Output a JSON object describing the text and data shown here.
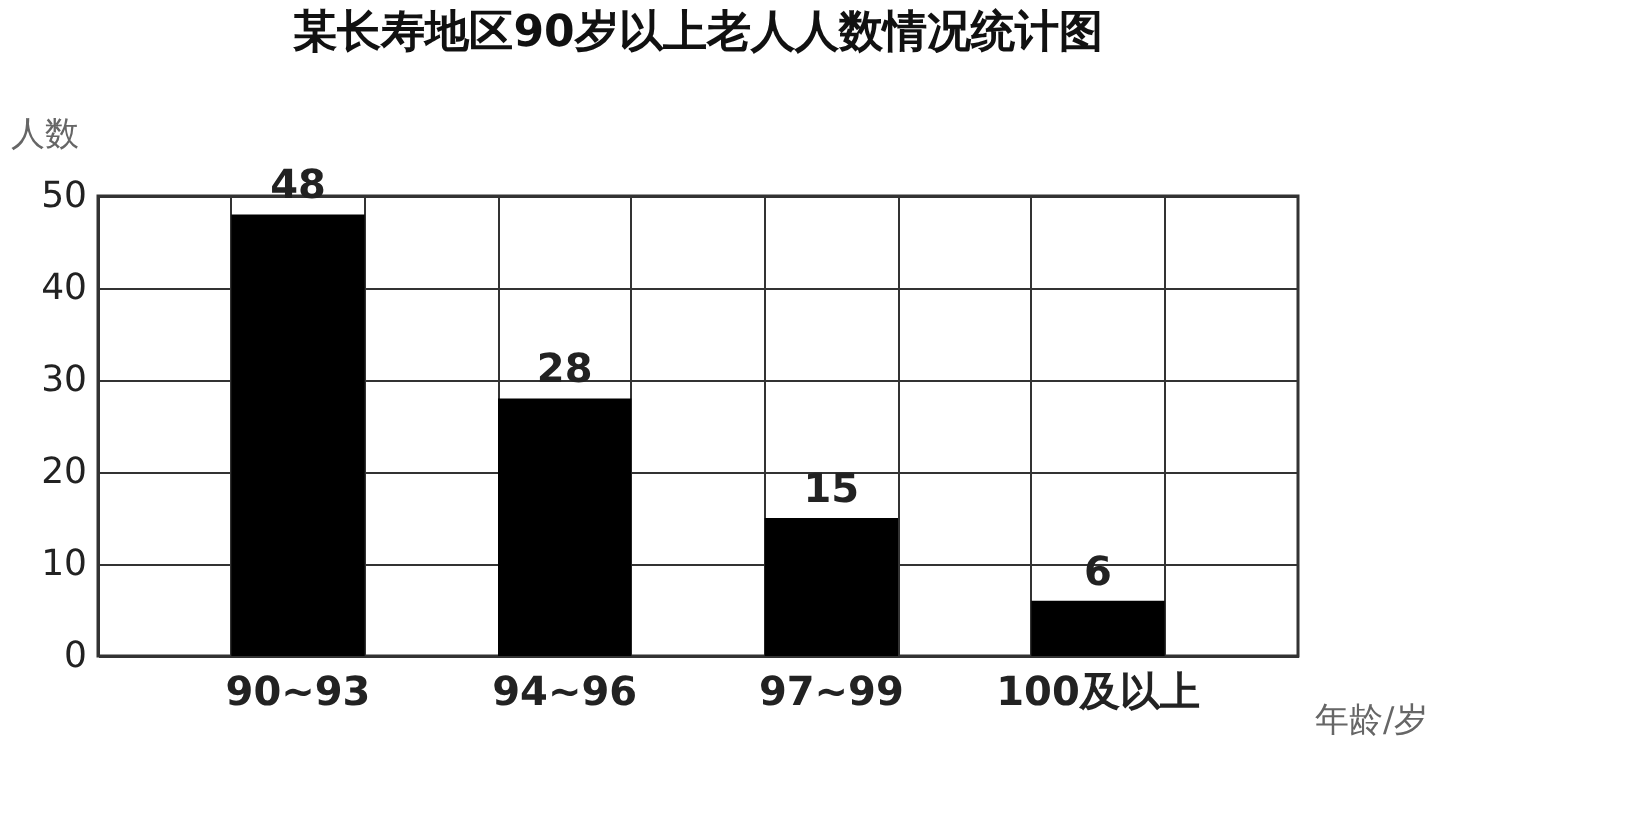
{
  "chart_data": {
    "type": "bar",
    "title": "某长寿地区90岁以上老人人数情况统计图",
    "xlabel": "年龄/岁",
    "ylabel": "人数",
    "categories": [
      "90~93",
      "94~96",
      "97~99",
      "100及以上"
    ],
    "values": [
      48,
      28,
      15,
      6
    ],
    "color": "#000000",
    "ylim": [
      0,
      50
    ],
    "yticks": [
      0,
      10,
      20,
      30,
      40,
      50
    ],
    "grid": true,
    "data_labels": true
  }
}
